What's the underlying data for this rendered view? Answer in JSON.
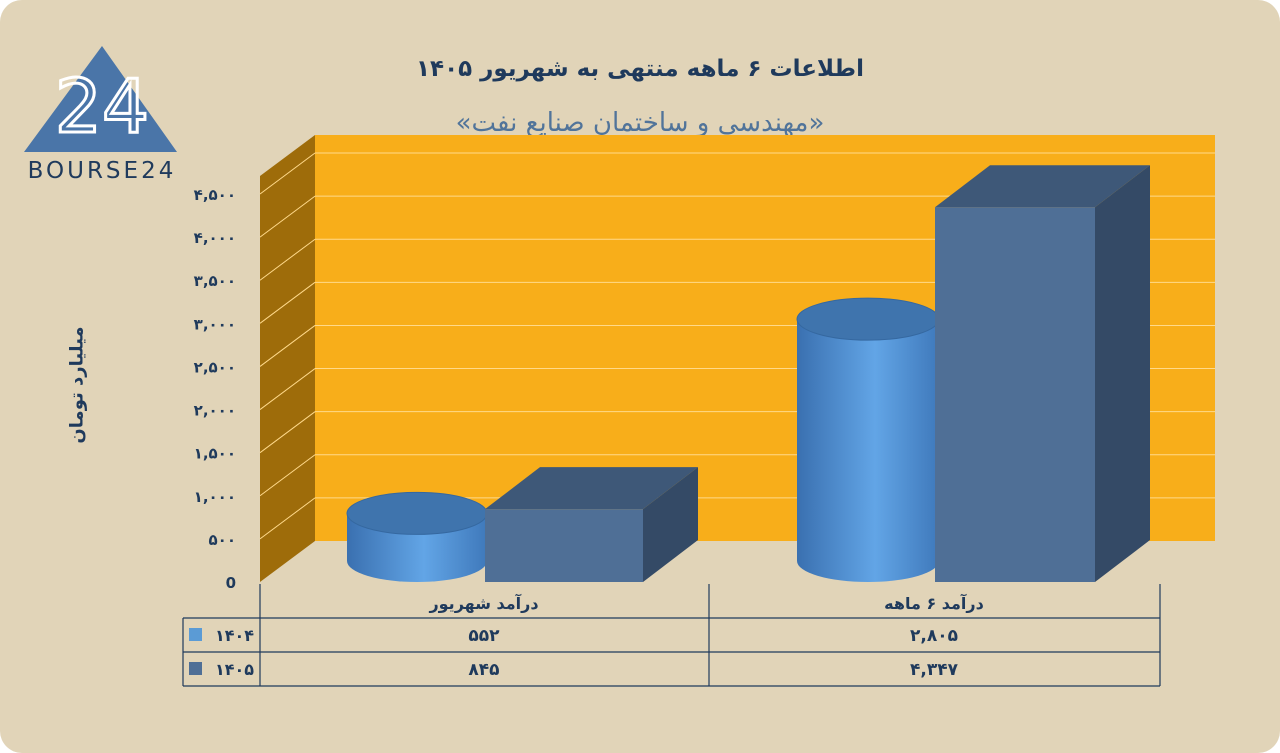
{
  "logo": {
    "text": "BOURSE24",
    "mark": "24"
  },
  "chart_data": {
    "type": "bar",
    "title": "اطلاعات ۶ ماهه منتهی به شهریور ۱۴۰۵",
    "subtitle": "«مهندسی و ساختمان صنایع نفت»",
    "ylabel": "میلیارد تومان",
    "ylim": [
      0,
      4500
    ],
    "yticks": [
      0,
      500,
      1000,
      1500,
      2000,
      2500,
      3000,
      3500,
      4000,
      4500
    ],
    "ytick_labels": [
      "0",
      "۵۰۰",
      "۱,۰۰۰",
      "۱,۵۰۰",
      "۲,۰۰۰",
      "۲,۵۰۰",
      "۳,۰۰۰",
      "۳,۵۰۰",
      "۴,۰۰۰",
      "۴,۵۰۰"
    ],
    "grid": true,
    "categories": [
      "درآمد شهریور",
      "درآمد ۶ ماهه"
    ],
    "series": [
      {
        "name": "۱۴۰۴",
        "values": [
          552,
          2805
        ],
        "value_labels": [
          "۵۵۲",
          "۲,۸۰۵"
        ],
        "color": "#5b9bd5",
        "shape": "cylinder"
      },
      {
        "name": "۱۴۰۵",
        "values": [
          845,
          4347
        ],
        "value_labels": [
          "۸۴۵",
          "۴,۳۴۷"
        ],
        "color": "#4f6f96",
        "shape": "box"
      }
    ],
    "legend": "data-table",
    "colors": {
      "plot_background": "#f8ae1a",
      "side_wall": "#9e6c0a",
      "grid": "#ffd98a"
    }
  }
}
